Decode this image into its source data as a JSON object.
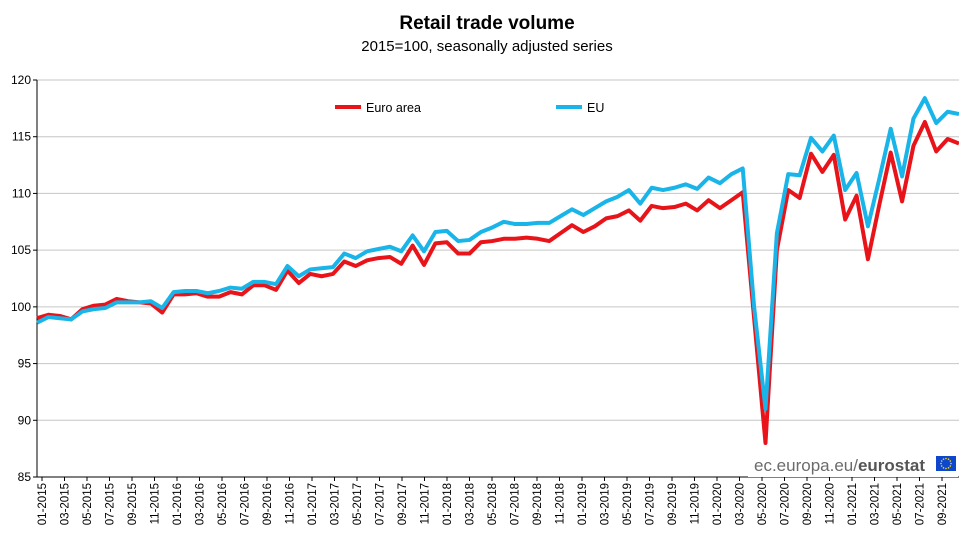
{
  "colors": {
    "euro_area": "#e8141a",
    "eu": "#19b4e8",
    "flag": "#0e47cb",
    "flag_stars": "#ffdd00"
  },
  "brand": {
    "prefix": "ec.europa.eu/",
    "name": "eurostat"
  },
  "chart_data": {
    "type": "line",
    "title": "Retail trade volume",
    "subtitle": "2015=100, seasonally adjusted series",
    "xlabel": "",
    "ylabel": "",
    "ylim": [
      85,
      120
    ],
    "yticks": [
      85,
      90,
      95,
      100,
      105,
      110,
      115,
      120
    ],
    "grid": true,
    "legend_position": "top",
    "tick_labels": [
      "01-2015",
      "03-2015",
      "05-2015",
      "07-2015",
      "09-2015",
      "11-2015",
      "01-2016",
      "03-2016",
      "05-2016",
      "07-2016",
      "09-2016",
      "11-2016",
      "01-2017",
      "03-2017",
      "05-2017",
      "07-2017",
      "09-2017",
      "11-2017",
      "01-2018",
      "03-2018",
      "05-2018",
      "07-2018",
      "09-2018",
      "11-2018",
      "01-2019",
      "03-2019",
      "05-2019",
      "07-2019",
      "09-2019",
      "11-2019",
      "01-2020",
      "03-2020",
      "05-2020",
      "07-2020",
      "09-2020",
      "11-2020",
      "01-2021",
      "03-2021",
      "05-2021",
      "07-2021",
      "09-2021"
    ],
    "series": [
      {
        "name": "Euro area",
        "color": "#e8141a",
        "values": [
          99.0,
          99.3,
          99.2,
          98.9,
          99.8,
          100.1,
          100.2,
          100.7,
          100.5,
          100.4,
          100.3,
          99.5,
          101.1,
          101.1,
          101.2,
          100.9,
          100.9,
          101.3,
          101.1,
          101.9,
          101.9,
          101.5,
          103.2,
          102.1,
          102.9,
          102.7,
          102.9,
          104.0,
          103.6,
          104.1,
          104.3,
          104.4,
          103.8,
          105.4,
          103.7,
          105.6,
          105.7,
          104.7,
          104.7,
          105.7,
          105.8,
          106.0,
          106.0,
          106.1,
          106.0,
          105.8,
          106.5,
          107.2,
          106.6,
          107.1,
          107.8,
          108.0,
          108.5,
          107.6,
          108.9,
          108.7,
          108.8,
          109.1,
          108.5,
          109.4,
          108.7,
          109.4,
          110.1,
          99.0,
          88.0,
          105.0,
          110.3,
          109.6,
          113.5,
          111.9,
          113.4,
          107.7,
          109.8,
          104.2,
          109.0,
          113.6,
          109.3,
          114.2,
          116.3,
          113.7,
          114.8,
          114.4
        ]
      },
      {
        "name": "EU",
        "color": "#19b4e8",
        "values": [
          98.6,
          99.1,
          99.0,
          98.9,
          99.6,
          99.8,
          99.9,
          100.4,
          100.4,
          100.4,
          100.5,
          99.9,
          101.3,
          101.4,
          101.4,
          101.2,
          101.4,
          101.7,
          101.6,
          102.2,
          102.2,
          102.0,
          103.6,
          102.7,
          103.3,
          103.4,
          103.5,
          104.7,
          104.3,
          104.9,
          105.1,
          105.3,
          104.9,
          106.3,
          104.9,
          106.6,
          106.7,
          105.8,
          105.9,
          106.6,
          107.0,
          107.5,
          107.3,
          107.3,
          107.4,
          107.4,
          108.0,
          108.6,
          108.1,
          108.7,
          109.3,
          109.7,
          110.3,
          109.1,
          110.5,
          110.3,
          110.5,
          110.8,
          110.4,
          111.4,
          110.9,
          111.7,
          112.2,
          100.0,
          91.0,
          106.5,
          111.7,
          111.6,
          114.9,
          113.7,
          115.1,
          110.3,
          111.8,
          107.1,
          111.3,
          115.7,
          111.5,
          116.6,
          118.4,
          116.2,
          117.2,
          117.0
        ]
      }
    ]
  }
}
